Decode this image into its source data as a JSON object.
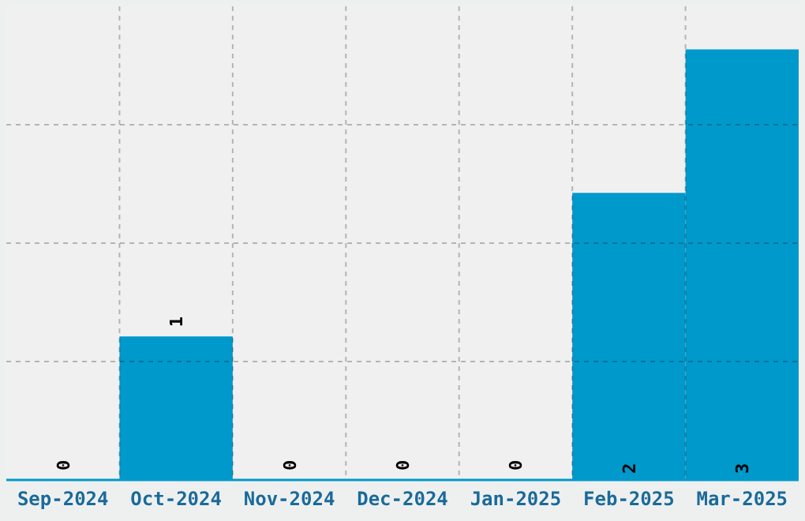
{
  "chart_data": {
    "type": "bar",
    "categories": [
      "Sep-2024",
      "Oct-2024",
      "Nov-2024",
      "Dec-2024",
      "Jan-2025",
      "Feb-2025",
      "Mar-2025"
    ],
    "values": [
      0,
      1,
      0,
      0,
      0,
      2,
      3
    ],
    "color": "#0099cc",
    "ylim": [
      0,
      3.3
    ],
    "yticks": [
      {
        "value": 0.825,
        "label": null
      },
      {
        "value": 1.65,
        "label": null
      },
      {
        "value": 2.475,
        "label": null
      }
    ],
    "grid": true,
    "data_labels": true,
    "tick_labels": "x"
  }
}
